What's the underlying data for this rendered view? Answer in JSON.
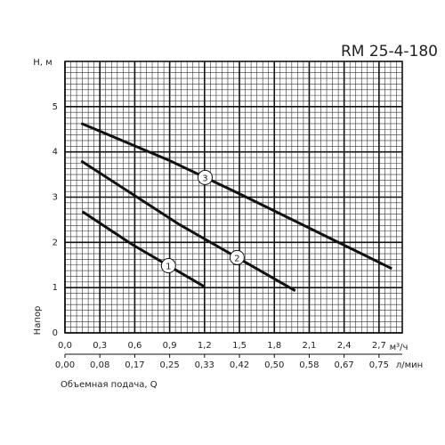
{
  "chart_data": {
    "type": "line",
    "title": "RM 25-4-180",
    "y_label": "Н, м",
    "y_axis_title": "Напор",
    "x_unit": "м³/ч",
    "x2_unit": "л/мин",
    "x_axis_title": "Объемная подача, Q",
    "xlim": [
      0,
      2.9
    ],
    "ylim": [
      0,
      6
    ],
    "xticks": [
      {
        "value": 0,
        "label": "0,0"
      },
      {
        "value": 0.3,
        "label": "0,3"
      },
      {
        "value": 0.6,
        "label": "0,6"
      },
      {
        "value": 0.9,
        "label": "0,9"
      },
      {
        "value": 1.2,
        "label": "1,2"
      },
      {
        "value": 1.5,
        "label": "1,5"
      },
      {
        "value": 1.8,
        "label": "1,8"
      },
      {
        "value": 2.1,
        "label": "2,1"
      },
      {
        "value": 2.4,
        "label": "2,4"
      },
      {
        "value": 2.7,
        "label": "2,7"
      }
    ],
    "x2lim": [
      0,
      0.8056
    ],
    "x2ticks": [
      {
        "value": 0,
        "label": "0,00"
      },
      {
        "value": 0.0833,
        "label": "0,08"
      },
      {
        "value": 0.1667,
        "label": "0,17"
      },
      {
        "value": 0.25,
        "label": "0,25"
      },
      {
        "value": 0.3333,
        "label": "0,33"
      },
      {
        "value": 0.4167,
        "label": "0,42"
      },
      {
        "value": 0.5,
        "label": "0,50"
      },
      {
        "value": 0.5833,
        "label": "0,58"
      },
      {
        "value": 0.6667,
        "label": "0,67"
      },
      {
        "value": 0.75,
        "label": "0,75"
      }
    ],
    "yticks": [
      0,
      1,
      2,
      3,
      4,
      5
    ],
    "grid": true,
    "series": [
      {
        "name": "1",
        "color": "#111",
        "x": [
          0.15,
          0.58,
          1.2
        ],
        "values": [
          2.68,
          1.95,
          1.02
        ]
      },
      {
        "name": "2",
        "color": "#111",
        "x": [
          0.14,
          0.98,
          1.98
        ],
        "values": [
          3.8,
          2.4,
          0.93
        ]
      },
      {
        "name": "3",
        "color": "#111",
        "x": [
          0.14,
          0.89,
          1.52,
          2.81
        ],
        "values": [
          4.63,
          3.82,
          3.05,
          1.42
        ]
      }
    ]
  }
}
